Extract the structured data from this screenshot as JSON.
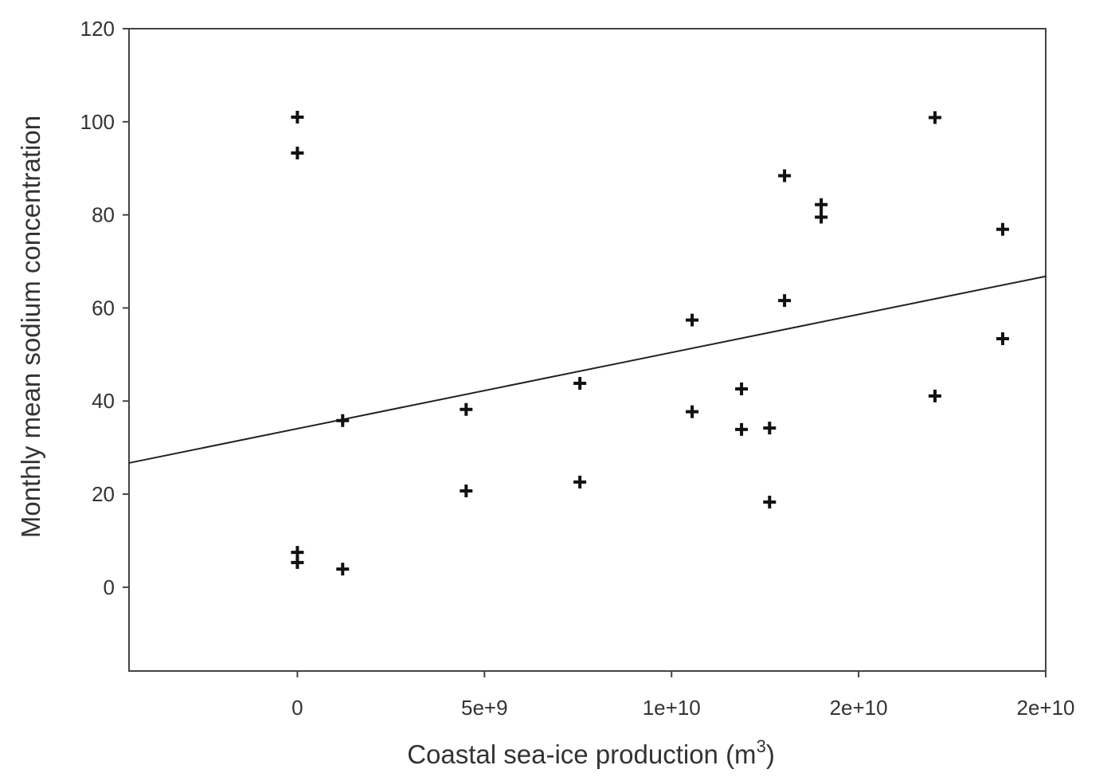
{
  "chart_data": {
    "type": "scatter",
    "x_label": {
      "text": "Coastal sea-ice production (m",
      "superscript": "3",
      "suffix": ")"
    },
    "y_label": "Monthly mean sodium concentration",
    "color": "#111111",
    "xlim": [
      -4500000000,
      20000000000
    ],
    "ylim": [
      -18,
      120
    ],
    "xticks": [
      0,
      {
        "value": 5000000000,
        "label": "5e+9"
      },
      {
        "value": 10000000000,
        "label": "1e+10"
      },
      {
        "value": 15000000000,
        "label": "2e+10"
      },
      {
        "value": 20000000000,
        "label": "2e+10"
      }
    ],
    "yticks": [
      0,
      20,
      40,
      60,
      80,
      100,
      120
    ],
    "x": [
      0,
      0,
      0,
      0,
      1210000000,
      1210000000,
      4510000000,
      4510000000,
      7550000000,
      7550000000,
      10550000000,
      10550000000,
      11870000000,
      11870000000,
      12620000000,
      12620000000,
      13020000000,
      13020000000,
      14000000000,
      14000000000,
      17040000000,
      17040000000,
      18850000000,
      18850000000
    ],
    "values": [
      101,
      93.3,
      7.5,
      5.3,
      35.8,
      3.9,
      38.2,
      20.7,
      43.8,
      22.6,
      57.4,
      37.7,
      42.6,
      33.9,
      34.2,
      18.3,
      88.4,
      61.6,
      82.2,
      79.5,
      100.9,
      41.1,
      76.9,
      53.4
    ],
    "trend_line": {
      "x": [
        -4500000000,
        20000000000
      ],
      "y": [
        26.7,
        66.8
      ]
    }
  }
}
